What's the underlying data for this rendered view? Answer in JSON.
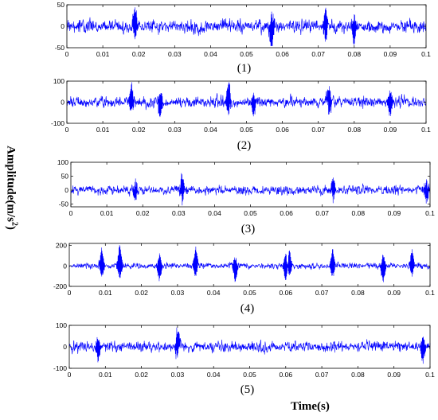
{
  "figure": {
    "ylabel_main": "Amplitude(m/s",
    "ylabel_sup": "2",
    "ylabel_close": ")",
    "xlabel": "Time(s)",
    "signal_color": "#0000ff"
  },
  "chart_data": [
    {
      "type": "line",
      "caption": "(1)",
      "xlim": [
        0,
        0.1
      ],
      "ylim": [
        -50,
        50
      ],
      "xticks": [
        "0",
        "0.01",
        "0.02",
        "0.03",
        "0.04",
        "0.05",
        "0.06",
        "0.07",
        "0.08",
        "0.09",
        "0.1"
      ],
      "yticks": [
        {
          "value": 50,
          "label": "50"
        },
        {
          "value": 0,
          "label": "0"
        },
        {
          "value": -50,
          "label": "-50"
        }
      ],
      "signal": {
        "noise_std": 12,
        "peak_max": 44,
        "peak_min": -46,
        "bursts": [
          {
            "t": 0.019,
            "amp": 48
          },
          {
            "t": 0.057,
            "amp": -48
          },
          {
            "t": 0.072,
            "amp": 46
          },
          {
            "t": 0.08,
            "amp": -40
          }
        ]
      }
    },
    {
      "type": "line",
      "caption": "(2)",
      "xlim": [
        0,
        0.1
      ],
      "ylim": [
        -100,
        100
      ],
      "xticks": [
        "0",
        "0.01",
        "0.02",
        "0.03",
        "0.04",
        "0.05",
        "0.06",
        "0.07",
        "0.08",
        "0.09",
        "0.1"
      ],
      "yticks": [
        {
          "value": 100,
          "label": "100"
        },
        {
          "value": 0,
          "label": "0"
        },
        {
          "value": -100,
          "label": "-100"
        }
      ],
      "signal": {
        "noise_std": 20,
        "peak_max": 95,
        "peak_min": -98,
        "bursts": [
          {
            "t": 0.018,
            "amp": 85
          },
          {
            "t": 0.026,
            "amp": -80
          },
          {
            "t": 0.045,
            "amp": 95
          },
          {
            "t": 0.052,
            "amp": -70
          },
          {
            "t": 0.073,
            "amp": 78
          },
          {
            "t": 0.09,
            "amp": -75
          }
        ]
      }
    },
    {
      "type": "line",
      "caption": "(3)",
      "xlim": [
        0,
        0.1
      ],
      "ylim": [
        -60,
        100
      ],
      "xticks": [
        "0",
        "0.01",
        "0.02",
        "0.03",
        "0.04",
        "0.05",
        "0.06",
        "0.07",
        "0.08",
        "0.09",
        "0.1"
      ],
      "yticks": [
        {
          "value": 100,
          "label": "100"
        },
        {
          "value": 50,
          "label": "50"
        },
        {
          "value": 0,
          "label": "0"
        },
        {
          "value": -50,
          "label": "-50"
        }
      ],
      "signal": {
        "noise_std": 13,
        "peak_max": 62,
        "peak_min": -55,
        "bursts": [
          {
            "t": 0.031,
            "amp": 62
          },
          {
            "t": 0.073,
            "amp": 48
          },
          {
            "t": 0.018,
            "amp": -40
          },
          {
            "t": 0.099,
            "amp": -50
          }
        ]
      }
    },
    {
      "type": "line",
      "caption": "(4)",
      "xlim": [
        0,
        0.1
      ],
      "ylim": [
        -200,
        220
      ],
      "xticks": [
        "0",
        "0.01",
        "0.02",
        "0.03",
        "0.04",
        "0.05",
        "0.06",
        "0.07",
        "0.08",
        "0.09",
        "0.1"
      ],
      "yticks": [
        {
          "value": 200,
          "label": "200"
        },
        {
          "value": 0,
          "label": "0"
        },
        {
          "value": -200,
          "label": "-200"
        }
      ],
      "signal": {
        "noise_std": 22,
        "peak_max": 210,
        "peak_min": -190,
        "bursts": [
          {
            "t": 0.009,
            "amp": 180
          },
          {
            "t": 0.014,
            "amp": 200
          },
          {
            "t": 0.025,
            "amp": -160
          },
          {
            "t": 0.035,
            "amp": 170
          },
          {
            "t": 0.046,
            "amp": -150
          },
          {
            "t": 0.06,
            "amp": -170
          },
          {
            "t": 0.061,
            "amp": 160
          },
          {
            "t": 0.073,
            "amp": 165
          },
          {
            "t": 0.087,
            "amp": -160
          },
          {
            "t": 0.095,
            "amp": 150
          }
        ]
      }
    },
    {
      "type": "line",
      "caption": "(5)",
      "xlim": [
        0,
        0.1
      ],
      "ylim": [
        -100,
        100
      ],
      "xticks": [
        "0",
        "0.01",
        "0.02",
        "0.03",
        "0.04",
        "0.05",
        "0.06",
        "0.07",
        "0.08",
        "0.09",
        "0.1"
      ],
      "yticks": [
        {
          "value": 100,
          "label": "100"
        },
        {
          "value": 0,
          "label": "0"
        },
        {
          "value": -100,
          "label": "-100"
        }
      ],
      "signal": {
        "noise_std": 20,
        "peak_max": 90,
        "peak_min": -95,
        "bursts": [
          {
            "t": 0.03,
            "amp": 85
          },
          {
            "t": 0.051,
            "amp": 95
          },
          {
            "t": 0.051,
            "amp": -90
          },
          {
            "t": 0.098,
            "amp": -80
          },
          {
            "t": 0.008,
            "amp": -70
          }
        ]
      }
    }
  ]
}
